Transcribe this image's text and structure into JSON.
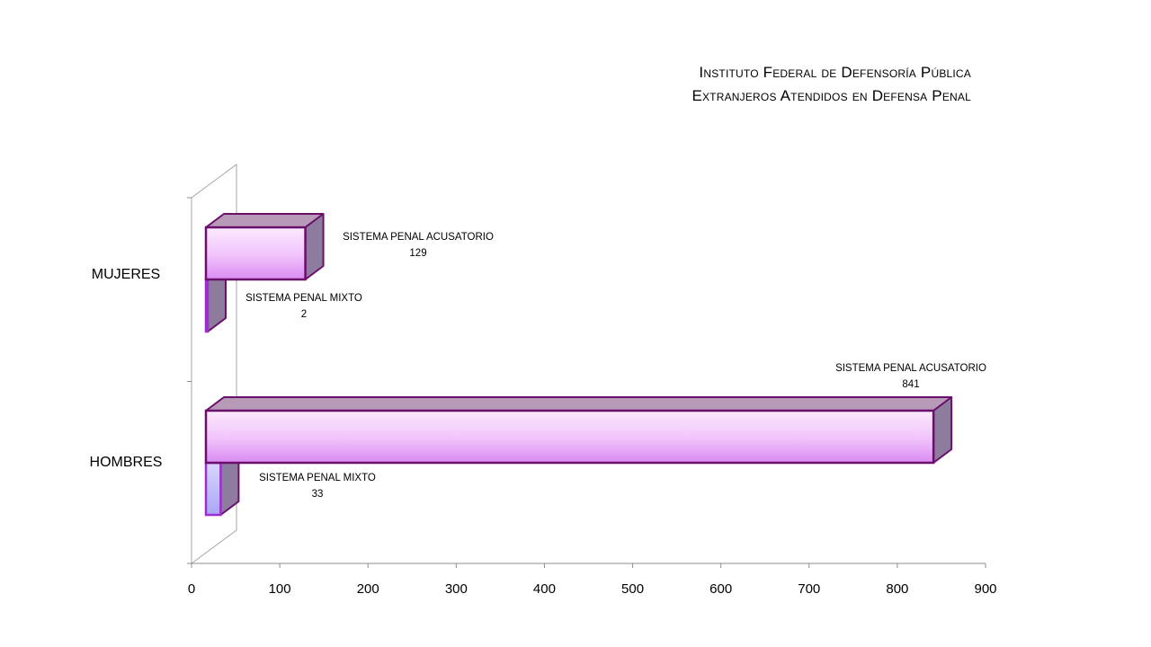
{
  "chart_data": {
    "type": "bar",
    "orientation": "horizontal",
    "style": "3d-clustered",
    "title_lines": [
      "Instituto Federal de Defensoría Pública",
      "Extranjeros  Atendidos en Defensa Penal"
    ],
    "categories": [
      "MUJERES",
      "HOMBRES"
    ],
    "series": [
      {
        "name": "SISTEMA PENAL ACUSATORIO",
        "values": [
          129,
          841
        ],
        "color": "#f0c6fb"
      },
      {
        "name": "SISTEMA PENAL MIXTO",
        "values": [
          2,
          33
        ],
        "color": "#c9c6fb"
      }
    ],
    "data_labels": [
      {
        "series": "SISTEMA PENAL ACUSATORIO",
        "category": "MUJERES",
        "name": "SISTEMA PENAL ACUSATORIO",
        "value": "129"
      },
      {
        "series": "SISTEMA PENAL MIXTO",
        "category": "MUJERES",
        "name": "SISTEMA PENAL MIXTO",
        "value": "2"
      },
      {
        "series": "SISTEMA PENAL ACUSATORIO",
        "category": "HOMBRES",
        "name": "SISTEMA PENAL ACUSATORIO",
        "value": "841"
      },
      {
        "series": "SISTEMA PENAL MIXTO",
        "category": "HOMBRES",
        "name": "SISTEMA PENAL MIXTO",
        "value": "33"
      }
    ],
    "x_ticks": [
      "0",
      "100",
      "200",
      "300",
      "400",
      "500",
      "600",
      "700",
      "800",
      "900"
    ],
    "xlim": [
      0,
      900
    ],
    "xlabel": "",
    "ylabel": "",
    "grid": false,
    "legend": "none",
    "outline_color": "#6a0f6a"
  }
}
